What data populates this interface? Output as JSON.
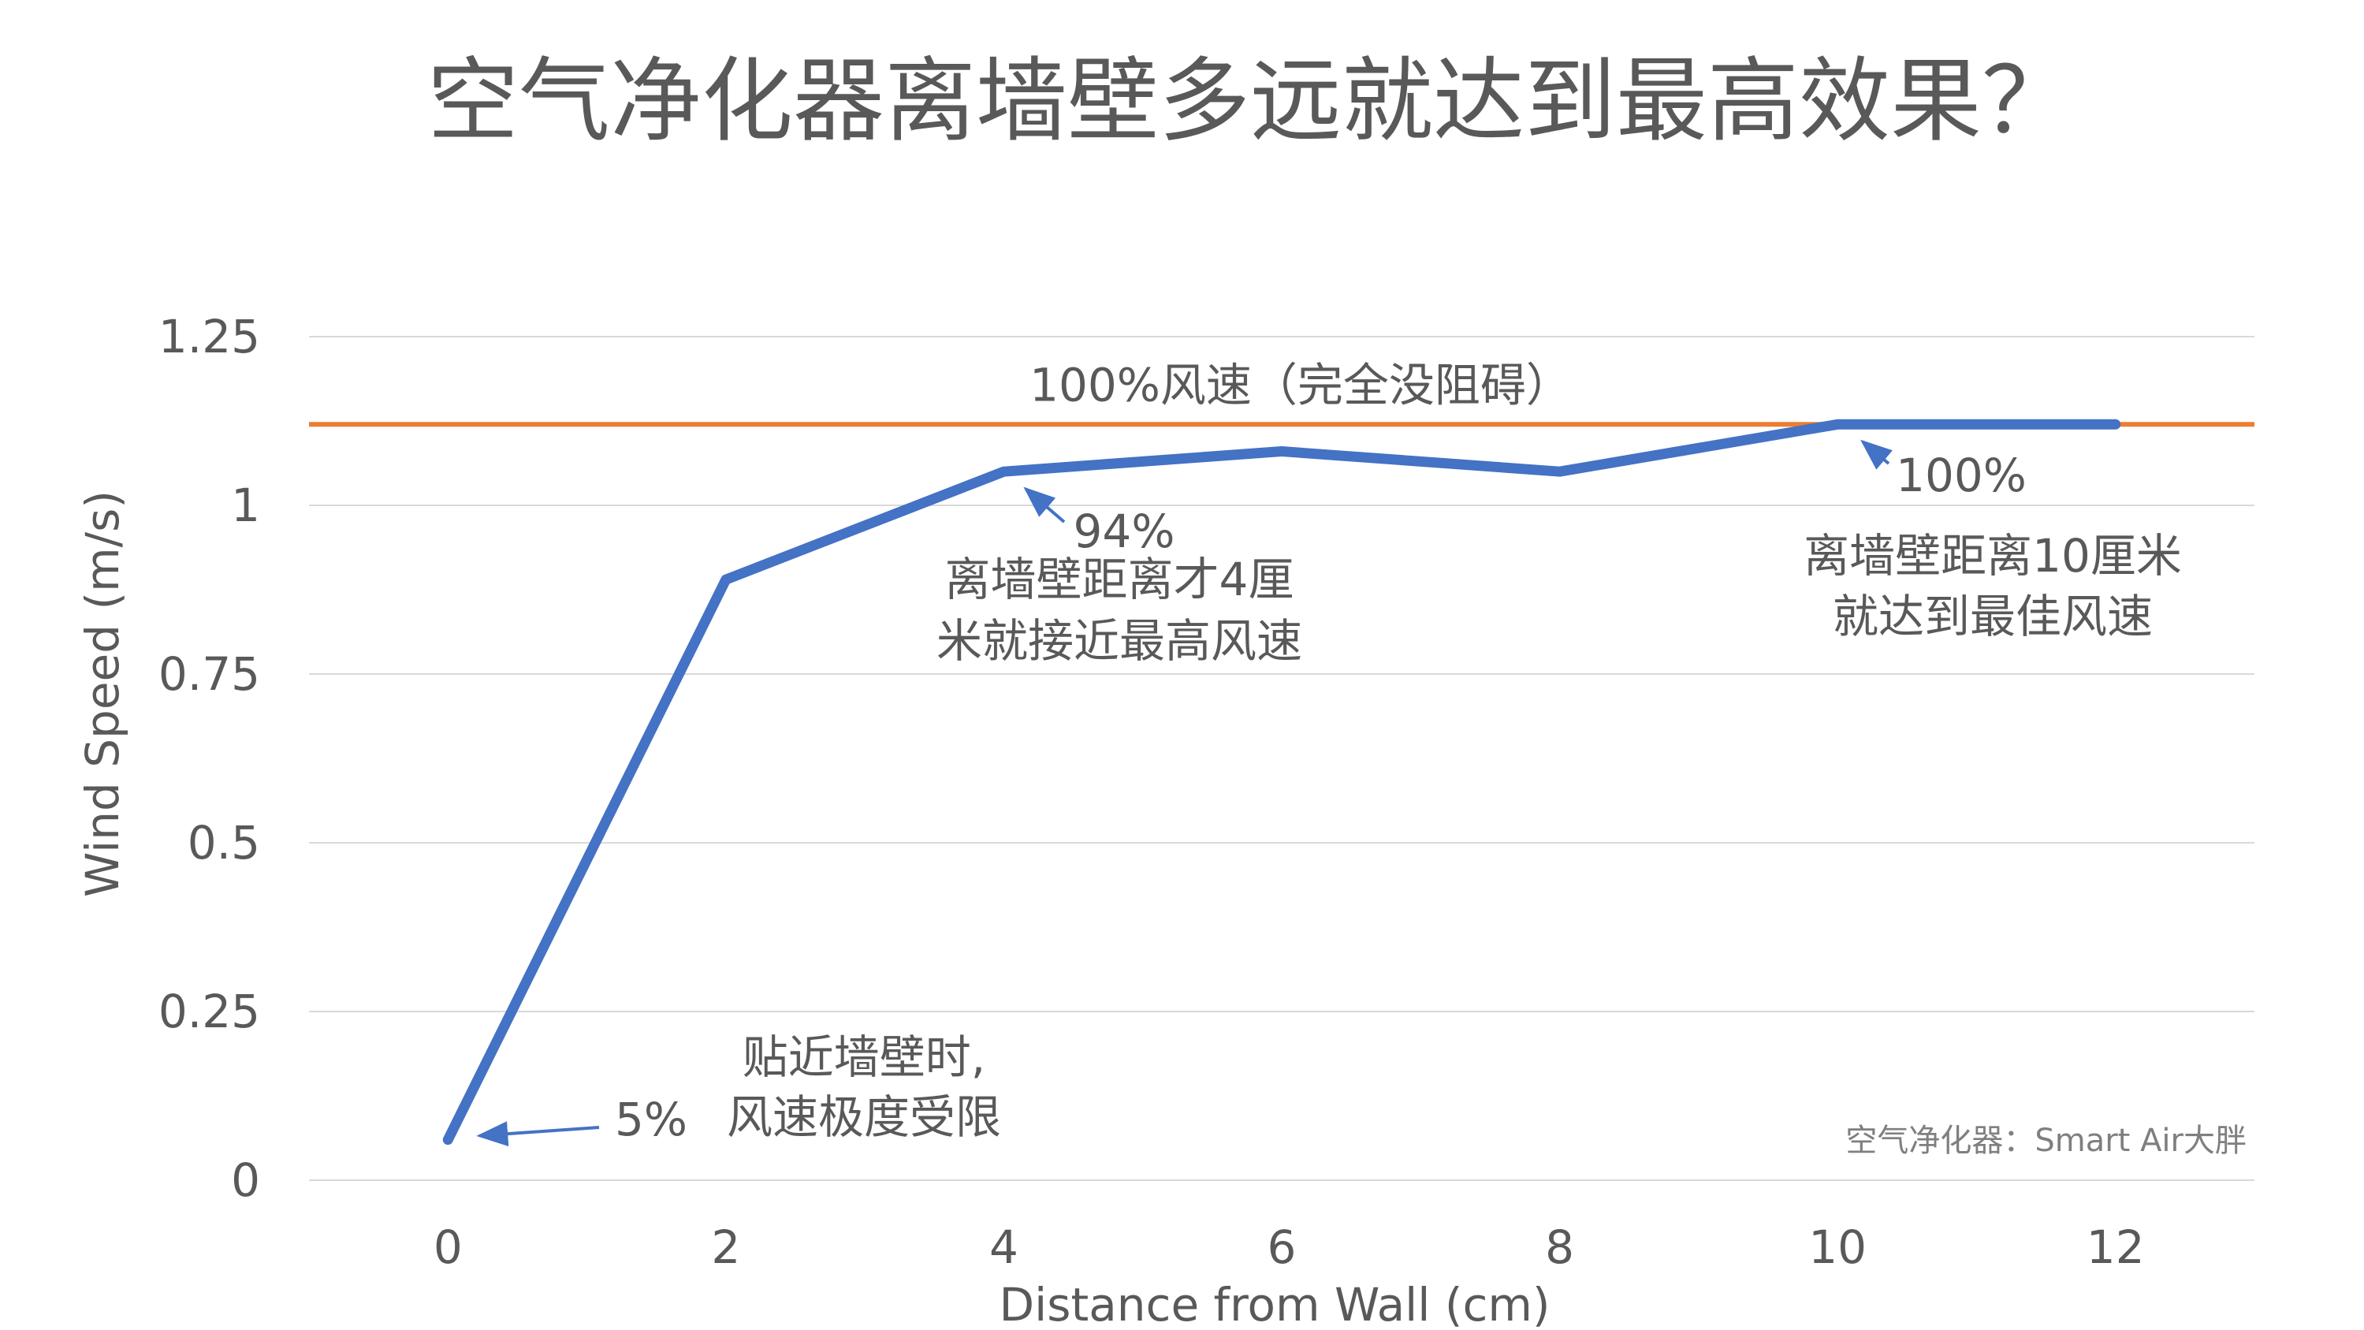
{
  "chart_data": {
    "type": "line",
    "title": "空气净化器离墙壁多远就达到最高效果？",
    "xlabel": "Distance from Wall (cm)",
    "ylabel": "Wind Speed (m/s)",
    "x": [
      0,
      2,
      4,
      6,
      8,
      10,
      12
    ],
    "x_ticks": [
      "0",
      "2",
      "4",
      "6",
      "8",
      "10",
      "12"
    ],
    "y_ticks": [
      "0",
      "0.25",
      "0.5",
      "0.75",
      "1",
      "1.25"
    ],
    "ylim": [
      0,
      1.25
    ],
    "grid": true,
    "series": [
      {
        "values": [
          0.06,
          0.89,
          1.05,
          1.08,
          1.05,
          1.12,
          1.12
        ],
        "color": "#4472C4"
      }
    ],
    "reference_line": {
      "y": 1.12,
      "label": "100%风速（完全没阻碍）",
      "color": "#ED7D31"
    },
    "annotations": [
      {
        "target_x": 0,
        "target_y": 0.06,
        "pct": "5%",
        "lines": [
          "贴近墙壁时,",
          "风速极度受限"
        ]
      },
      {
        "target_x": 4,
        "target_y": 1.05,
        "pct": "94%",
        "lines": [
          "离墙壁距离才4厘",
          "米就接近最高风速"
        ]
      },
      {
        "target_x": 10,
        "target_y": 1.12,
        "pct": "100%",
        "lines": [
          "离墙壁距离10厘米",
          "就达到最佳风速"
        ]
      }
    ],
    "credit": "空气净化器：Smart Air大胖"
  }
}
